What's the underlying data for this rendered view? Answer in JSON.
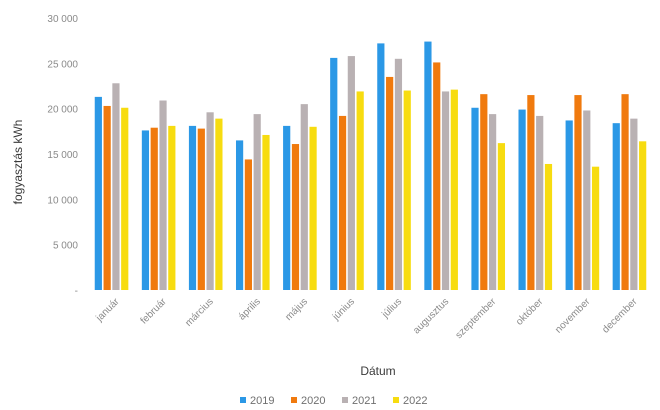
{
  "chart_data": {
    "type": "bar",
    "title": "",
    "xlabel": "Dátum",
    "ylabel": "fogyasztás kWh",
    "ylim": [
      0,
      30000
    ],
    "yticks": [
      0,
      5000,
      10000,
      15000,
      20000,
      25000,
      30000
    ],
    "ytick_labels": [
      "-",
      "5 000",
      "10 000",
      "15 000",
      "20 000",
      "25 000",
      "30 000"
    ],
    "grid": false,
    "legend_position": "bottom",
    "categories": [
      "január",
      "február",
      "március",
      "április",
      "május",
      "június",
      "július",
      "augusztus",
      "szeptember",
      "október",
      "november",
      "december"
    ],
    "series": [
      {
        "name": "2019",
        "color": "#2b98e6",
        "values": [
          21300,
          17600,
          18100,
          16500,
          18100,
          25600,
          27200,
          27400,
          20100,
          19900,
          18700,
          18400
        ]
      },
      {
        "name": "2020",
        "color": "#f07a0e",
        "values": [
          20300,
          17900,
          17800,
          14400,
          16100,
          19200,
          23500,
          25100,
          21600,
          21500,
          21500,
          21600
        ]
      },
      {
        "name": "2021",
        "color": "#b9b1b3",
        "values": [
          22800,
          20900,
          19600,
          19400,
          20500,
          25800,
          25500,
          21900,
          19400,
          19200,
          19800,
          18900
        ]
      },
      {
        "name": "2022",
        "color": "#f7dc10",
        "values": [
          20100,
          18100,
          18900,
          17100,
          18000,
          21900,
          22000,
          22100,
          16200,
          13900,
          13600,
          16400
        ]
      }
    ]
  }
}
